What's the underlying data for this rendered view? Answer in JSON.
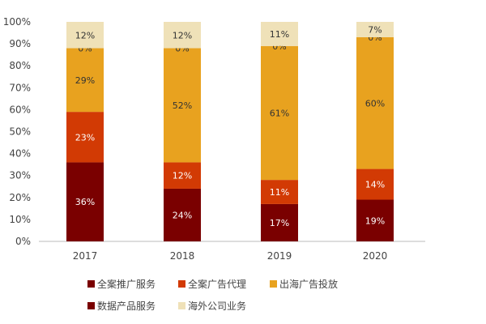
{
  "chart_data": {
    "type": "bar",
    "stacked": true,
    "categories": [
      "2017",
      "2018",
      "2019",
      "2020"
    ],
    "ylim": [
      0,
      100
    ],
    "yticks": [
      "0%",
      "10%",
      "20%",
      "30%",
      "40%",
      "50%",
      "60%",
      "70%",
      "80%",
      "90%",
      "100%"
    ],
    "grid": false,
    "legend_position": "bottom",
    "series": [
      {
        "name": "数据产品服务",
        "color": "#7a0000",
        "values": [
          36,
          24,
          17,
          19
        ],
        "labels": [
          "36%",
          "24%",
          "17%",
          "19%"
        ]
      },
      {
        "name": "全案广告代理",
        "color": "#d23a04",
        "values": [
          23,
          12,
          11,
          14
        ],
        "labels": [
          "23%",
          "12%",
          "11%",
          "14%"
        ]
      },
      {
        "name": "出海广告投放",
        "color": "#e8a21f",
        "values": [
          29,
          52,
          61,
          60
        ],
        "labels": [
          "29%",
          "52%",
          "61%",
          "60%"
        ]
      },
      {
        "name": "全案推广服务",
        "color": "#7a0000",
        "values": [
          0,
          0,
          0,
          0
        ],
        "labels": [
          "0%",
          "0%",
          "0%",
          "0%"
        ]
      },
      {
        "name": "海外公司业务",
        "color": "#efe1b8",
        "values": [
          12,
          12,
          11,
          7
        ],
        "labels": [
          "12%",
          "12%",
          "11%",
          "7%"
        ]
      }
    ],
    "legend_order": [
      3,
      1,
      2,
      0,
      4
    ]
  }
}
